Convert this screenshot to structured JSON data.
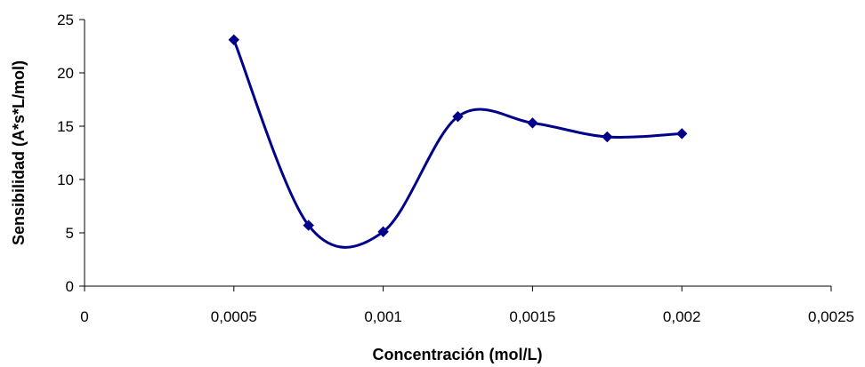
{
  "chart_data": {
    "type": "line",
    "xlabel": "Concentración (mol/L)",
    "ylabel": "Sensibilidad (A*s*L/mol)",
    "xlim": [
      0,
      0.0025
    ],
    "ylim": [
      0,
      25
    ],
    "x_ticks": [
      0,
      0.0005,
      0.001,
      0.0015,
      0.002,
      0.0025
    ],
    "x_tick_labels": [
      "0",
      "0,0005",
      "0,001",
      "0,0015",
      "0,002",
      "0,0025"
    ],
    "y_ticks": [
      0,
      5,
      10,
      15,
      20,
      25
    ],
    "y_tick_labels": [
      "0",
      "5",
      "10",
      "15",
      "20",
      "25"
    ],
    "grid": false,
    "legend": "none",
    "smooth": true,
    "marker": "diamond",
    "series": [
      {
        "color": "#00008B",
        "x": [
          0.0005,
          0.00075,
          0.001,
          0.00125,
          0.0015,
          0.00175,
          0.002
        ],
        "y": [
          23.1,
          5.7,
          5.1,
          15.9,
          15.3,
          14.0,
          14.3
        ]
      }
    ]
  }
}
